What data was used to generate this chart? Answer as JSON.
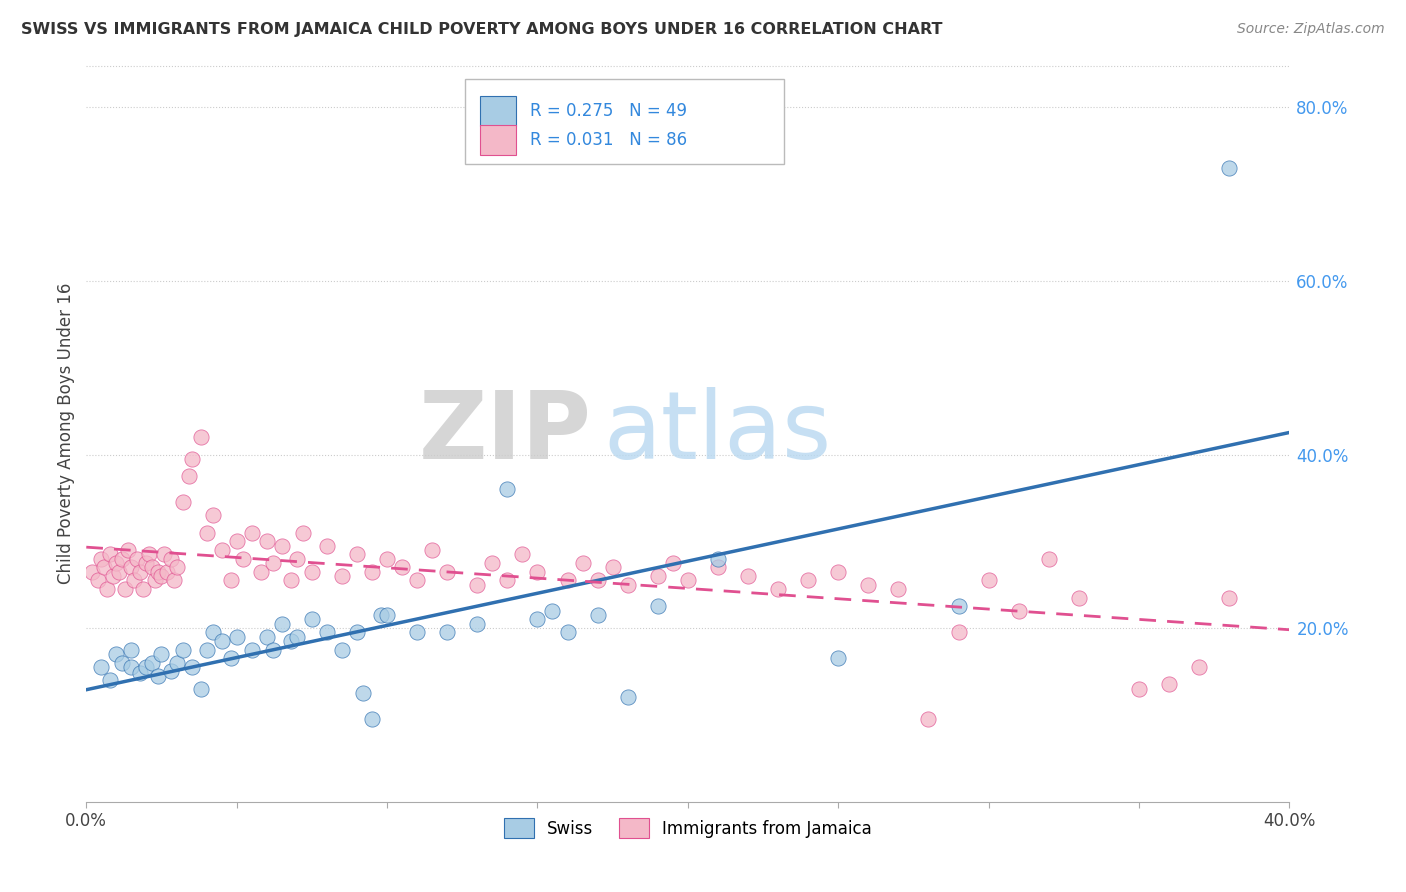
{
  "title": "SWISS VS IMMIGRANTS FROM JAMAICA CHILD POVERTY AMONG BOYS UNDER 16 CORRELATION CHART",
  "source": "Source: ZipAtlas.com",
  "ylabel": "Child Poverty Among Boys Under 16",
  "x_min": 0.0,
  "x_max": 0.4,
  "y_min": 0.0,
  "y_max": 0.85,
  "blue_color": "#a8cce4",
  "pink_color": "#f4b8c8",
  "blue_line_color": "#3070b0",
  "pink_line_color": "#e05090",
  "watermark_zip": "ZIP",
  "watermark_atlas": "atlas",
  "swiss_R": "0.275",
  "swiss_N": "49",
  "jamaica_R": "0.031",
  "jamaica_N": "86",
  "swiss_x": [
    0.005,
    0.008,
    0.01,
    0.012,
    0.015,
    0.015,
    0.018,
    0.02,
    0.022,
    0.024,
    0.025,
    0.028,
    0.03,
    0.032,
    0.035,
    0.038,
    0.04,
    0.042,
    0.045,
    0.048,
    0.05,
    0.055,
    0.06,
    0.062,
    0.065,
    0.068,
    0.07,
    0.075,
    0.08,
    0.085,
    0.09,
    0.092,
    0.095,
    0.098,
    0.1,
    0.11,
    0.12,
    0.13,
    0.14,
    0.15,
    0.155,
    0.16,
    0.17,
    0.18,
    0.19,
    0.21,
    0.25,
    0.29,
    0.38
  ],
  "swiss_y": [
    0.155,
    0.14,
    0.17,
    0.16,
    0.155,
    0.175,
    0.148,
    0.155,
    0.16,
    0.145,
    0.17,
    0.15,
    0.16,
    0.175,
    0.155,
    0.13,
    0.175,
    0.195,
    0.185,
    0.165,
    0.19,
    0.175,
    0.19,
    0.175,
    0.205,
    0.185,
    0.19,
    0.21,
    0.195,
    0.175,
    0.195,
    0.125,
    0.095,
    0.215,
    0.215,
    0.195,
    0.195,
    0.205,
    0.36,
    0.21,
    0.22,
    0.195,
    0.215,
    0.12,
    0.225,
    0.28,
    0.165,
    0.225,
    0.73
  ],
  "jamaica_x": [
    0.002,
    0.004,
    0.005,
    0.006,
    0.007,
    0.008,
    0.009,
    0.01,
    0.011,
    0.012,
    0.013,
    0.014,
    0.015,
    0.016,
    0.017,
    0.018,
    0.019,
    0.02,
    0.021,
    0.022,
    0.023,
    0.024,
    0.025,
    0.026,
    0.027,
    0.028,
    0.029,
    0.03,
    0.032,
    0.034,
    0.035,
    0.038,
    0.04,
    0.042,
    0.045,
    0.048,
    0.05,
    0.052,
    0.055,
    0.058,
    0.06,
    0.062,
    0.065,
    0.068,
    0.07,
    0.072,
    0.075,
    0.08,
    0.085,
    0.09,
    0.095,
    0.1,
    0.105,
    0.11,
    0.115,
    0.12,
    0.13,
    0.135,
    0.14,
    0.145,
    0.15,
    0.16,
    0.165,
    0.17,
    0.175,
    0.18,
    0.19,
    0.195,
    0.2,
    0.21,
    0.22,
    0.23,
    0.24,
    0.25,
    0.26,
    0.27,
    0.28,
    0.29,
    0.3,
    0.31,
    0.32,
    0.33,
    0.35,
    0.36,
    0.37,
    0.38
  ],
  "jamaica_y": [
    0.265,
    0.255,
    0.28,
    0.27,
    0.245,
    0.285,
    0.26,
    0.275,
    0.265,
    0.28,
    0.245,
    0.29,
    0.27,
    0.255,
    0.28,
    0.265,
    0.245,
    0.275,
    0.285,
    0.27,
    0.255,
    0.265,
    0.26,
    0.285,
    0.265,
    0.28,
    0.255,
    0.27,
    0.345,
    0.375,
    0.395,
    0.42,
    0.31,
    0.33,
    0.29,
    0.255,
    0.3,
    0.28,
    0.31,
    0.265,
    0.3,
    0.275,
    0.295,
    0.255,
    0.28,
    0.31,
    0.265,
    0.295,
    0.26,
    0.285,
    0.265,
    0.28,
    0.27,
    0.255,
    0.29,
    0.265,
    0.25,
    0.275,
    0.255,
    0.285,
    0.265,
    0.255,
    0.275,
    0.255,
    0.27,
    0.25,
    0.26,
    0.275,
    0.255,
    0.27,
    0.26,
    0.245,
    0.255,
    0.265,
    0.25,
    0.245,
    0.095,
    0.195,
    0.255,
    0.22,
    0.28,
    0.235,
    0.13,
    0.135,
    0.155,
    0.235
  ]
}
